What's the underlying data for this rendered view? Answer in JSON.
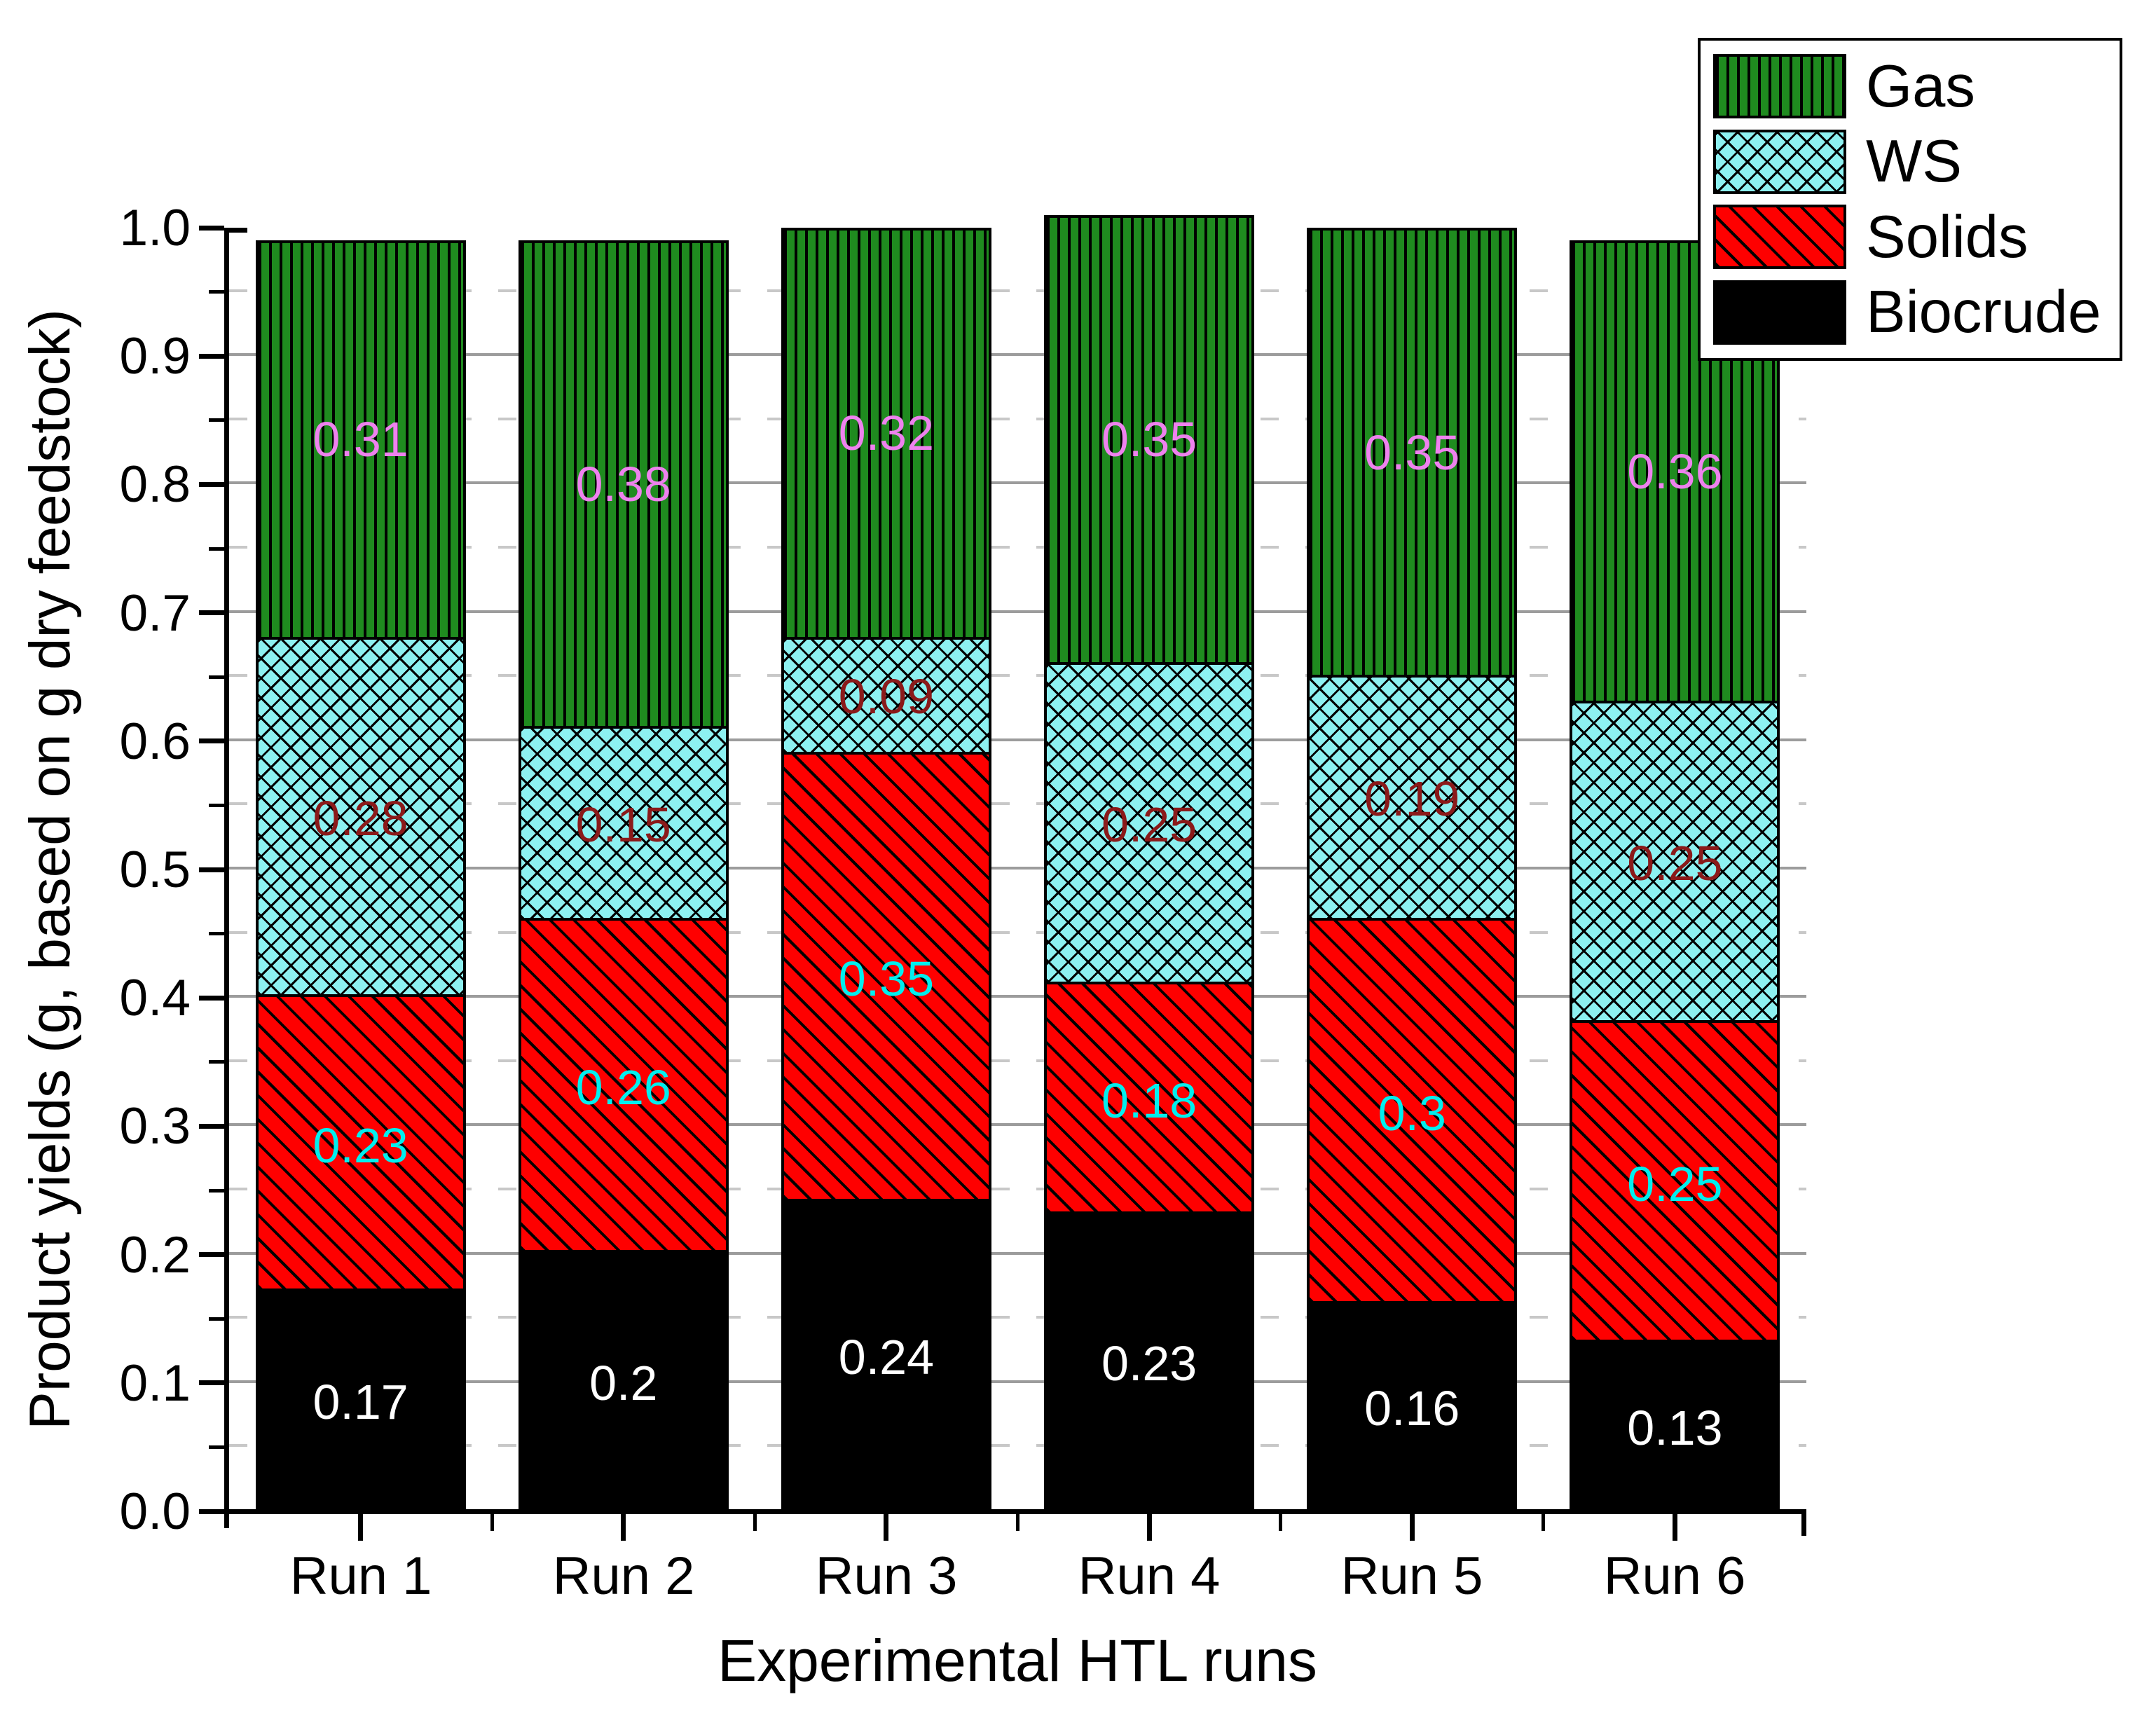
{
  "chart_data": {
    "type": "bar",
    "stacked": true,
    "xlabel": "Experimental HTL runs",
    "ylabel": "Product yields (g, based on g dry feedstock)",
    "categories": [
      "Run 1",
      "Run 2",
      "Run 3",
      "Run 4",
      "Run 5",
      "Run 6"
    ],
    "series": [
      {
        "name": "Biocrude",
        "color": "#000000",
        "pattern": "solid",
        "label_color": "#ffffff",
        "values": [
          0.17,
          0.2,
          0.24,
          0.23,
          0.16,
          0.13
        ]
      },
      {
        "name": "Solids",
        "color": "#fe0000",
        "pattern": "diagonal-hatch",
        "label_color": "#00efef",
        "values": [
          0.23,
          0.26,
          0.35,
          0.18,
          0.3,
          0.25
        ]
      },
      {
        "name": "WS",
        "color": "#8df1f1",
        "pattern": "cross-hatch",
        "label_color": "#8b1a1a",
        "values": [
          0.28,
          0.15,
          0.09,
          0.25,
          0.19,
          0.25
        ]
      },
      {
        "name": "Gas",
        "color": "#1f8b1f",
        "pattern": "vertical-hatch",
        "label_color": "#ee82ee",
        "values": [
          0.31,
          0.38,
          0.32,
          0.35,
          0.35,
          0.36
        ]
      }
    ],
    "ylim": [
      0,
      1
    ],
    "y_major_tick_step": 0.1,
    "y_minor_tick_step": 0.05,
    "y_tick_labels": [
      "0.0",
      "0.1",
      "0.2",
      "0.3",
      "0.4",
      "0.5",
      "0.6",
      "0.7",
      "0.8",
      "0.9",
      "1.0"
    ],
    "grid": {
      "major": "solid-gray",
      "minor": "dashed-gray"
    },
    "legend": {
      "position": "top-right",
      "entries": [
        "Gas",
        "WS",
        "Solids",
        "Biocrude"
      ]
    }
  }
}
